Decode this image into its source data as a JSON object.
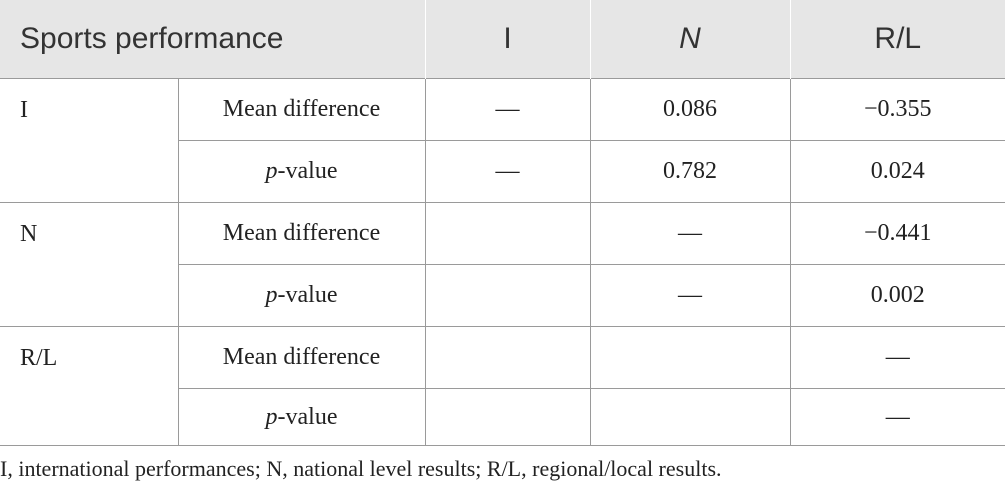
{
  "header": [
    "Sports performance",
    "I",
    "N",
    "R/L"
  ],
  "groups": [
    {
      "name": "I",
      "rows": [
        {
          "label": [
            "Mean difference"
          ],
          "cells": [
            "—",
            "0.086",
            "−0.355"
          ]
        },
        {
          "label": [
            "p",
            "-value"
          ],
          "cells": [
            "—",
            "0.782",
            "0.024"
          ]
        }
      ]
    },
    {
      "name": "N",
      "rows": [
        {
          "label": [
            "Mean difference"
          ],
          "cells": [
            null,
            "—",
            "−0.441"
          ]
        },
        {
          "label": [
            "p",
            "-value"
          ],
          "cells": [
            null,
            "—",
            "0.002"
          ]
        }
      ]
    },
    {
      "name": "R/L",
      "rows": [
        {
          "label": [
            "Mean difference"
          ],
          "cells": [
            null,
            null,
            "—"
          ]
        },
        {
          "label": [
            "p",
            "-value"
          ],
          "cells": [
            null,
            null,
            "—"
          ]
        }
      ]
    }
  ],
  "footnote": "I, international performances; N, national level results; R/L, regional/local results."
}
